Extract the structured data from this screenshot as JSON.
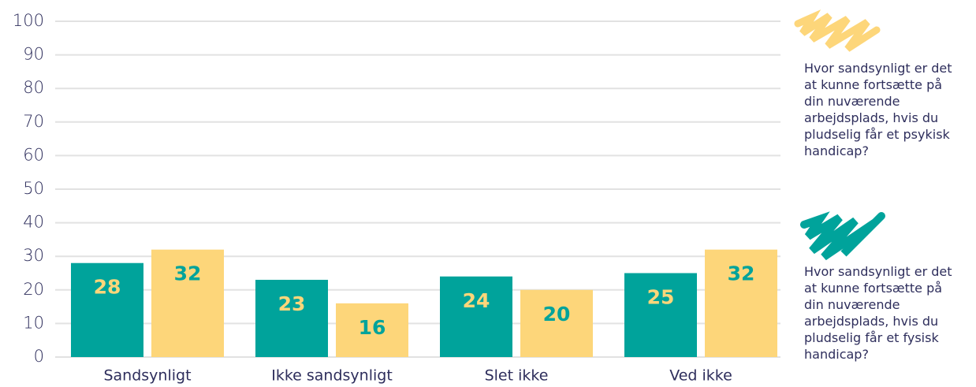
{
  "chart_data": {
    "type": "bar",
    "categories": [
      "Sandsynligt",
      "Ikke sandsynligt",
      "Slet ikke",
      "Ved ikke"
    ],
    "series": [
      {
        "name": "Hvor sandsynligt er det at kunne fortsætte på din nuværende arbejdsplads, hvis du pludselig får et fysisk handicap?",
        "color": "#00a39b",
        "values": [
          28,
          23,
          24,
          25
        ]
      },
      {
        "name": "Hvor sandsynligt er det at kunne fortsætte på din nuværende arbejdsplads, hvis du pludselig får et psykisk handicap?",
        "color": "#fdd67a",
        "values": [
          32,
          16,
          20,
          32
        ]
      }
    ],
    "ylim": [
      0,
      100
    ],
    "yticks": [
      0,
      10,
      20,
      30,
      40,
      50,
      60,
      70,
      80,
      90,
      100
    ],
    "grid": true
  }
}
